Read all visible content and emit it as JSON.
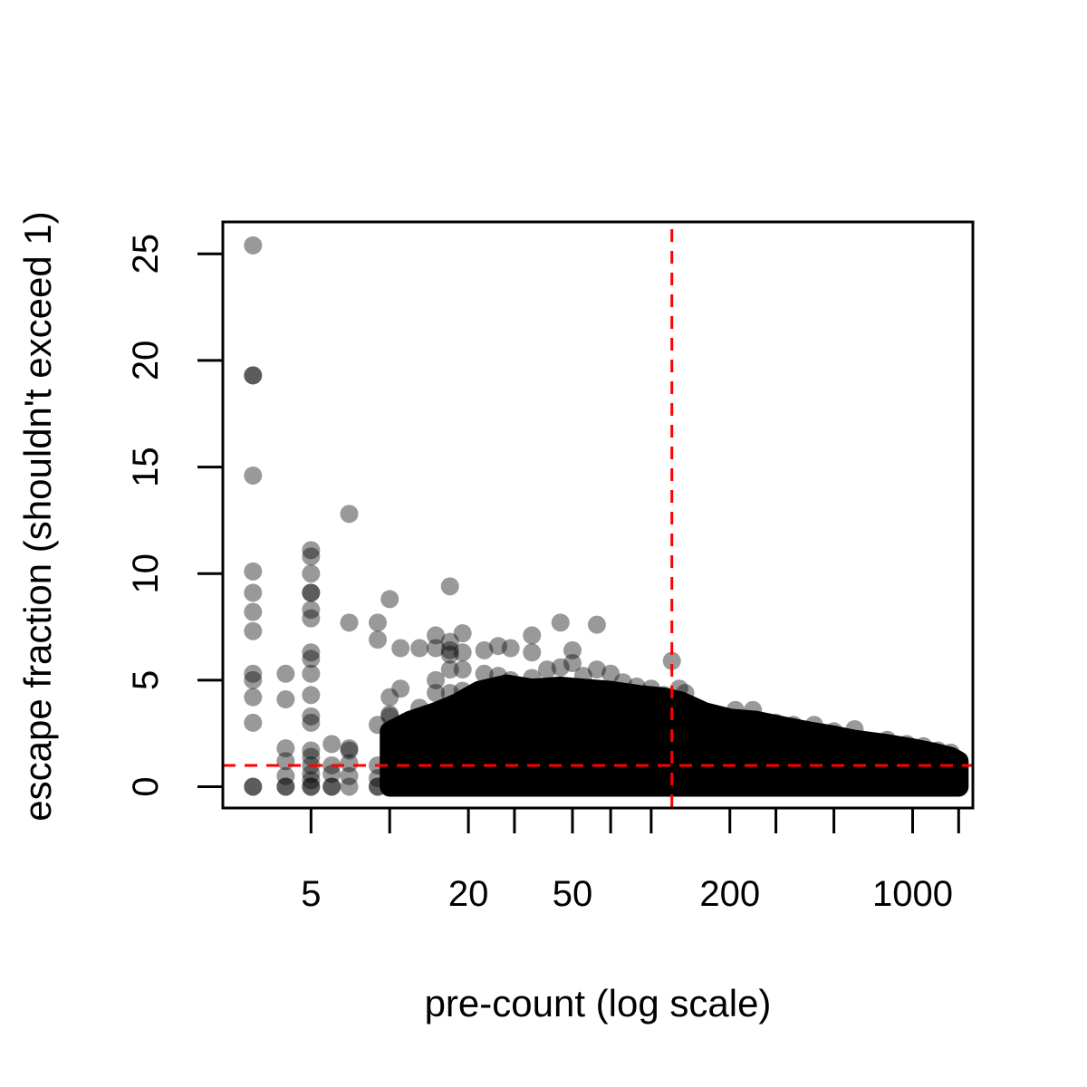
{
  "chart_data": {
    "type": "scatter",
    "title": "",
    "xlabel": "pre-count (log scale)",
    "ylabel": "escape fraction (shouldn't exceed 1)",
    "x_scale": "log",
    "xlim": [
      2.3,
      1700
    ],
    "ylim": [
      -1,
      26.5
    ],
    "x_ticks": [
      5,
      10,
      20,
      30,
      50,
      70,
      100,
      200,
      300,
      500,
      1000,
      1500
    ],
    "x_tick_labels": [
      {
        "value": 5,
        "label": "5"
      },
      {
        "value": 20,
        "label": "20"
      },
      {
        "value": 50,
        "label": "50"
      },
      {
        "value": 200,
        "label": "200"
      },
      {
        "value": 1000,
        "label": "1000"
      }
    ],
    "y_ticks": [
      {
        "value": 0,
        "label": "0"
      },
      {
        "value": 5,
        "label": "5"
      },
      {
        "value": 10,
        "label": "10"
      },
      {
        "value": 15,
        "label": "15"
      },
      {
        "value": 20,
        "label": "20"
      },
      {
        "value": 25,
        "label": "25"
      }
    ],
    "reference_lines": [
      {
        "orientation": "horizontal",
        "value": 1,
        "color": "#ff0000",
        "style": "dashed"
      },
      {
        "orientation": "vertical",
        "value": 120,
        "color": "#ff0000",
        "style": "dashed"
      }
    ],
    "point_color": "#000000",
    "point_opacity": 0.4,
    "grid": false,
    "legend": "none",
    "points": [
      [
        3,
        25.4
      ],
      [
        3,
        19.3
      ],
      [
        3,
        19.3
      ],
      [
        3,
        14.6
      ],
      [
        3,
        10.1
      ],
      [
        3,
        9.1
      ],
      [
        3,
        8.2
      ],
      [
        3,
        7.3
      ],
      [
        3,
        5.3
      ],
      [
        3,
        5.0
      ],
      [
        3,
        4.2
      ],
      [
        3,
        3.0
      ],
      [
        3,
        0
      ],
      [
        3,
        0
      ],
      [
        4,
        5.3
      ],
      [
        4,
        4.1
      ],
      [
        4,
        1.8
      ],
      [
        4,
        1.2
      ],
      [
        4,
        0.5
      ],
      [
        4,
        0
      ],
      [
        4,
        0
      ],
      [
        5,
        11.1
      ],
      [
        5,
        10.8
      ],
      [
        5,
        10.0
      ],
      [
        5,
        9.1
      ],
      [
        5,
        9.1
      ],
      [
        5,
        8.3
      ],
      [
        5,
        7.9
      ],
      [
        5,
        6.3
      ],
      [
        5,
        6.0
      ],
      [
        5,
        5.3
      ],
      [
        5,
        4.3
      ],
      [
        5,
        3.3
      ],
      [
        5,
        3.0
      ],
      [
        5,
        1.7
      ],
      [
        5,
        1.4
      ],
      [
        5,
        1.0
      ],
      [
        5,
        0.6
      ],
      [
        5,
        0.3
      ],
      [
        5,
        0
      ],
      [
        5,
        0
      ],
      [
        6,
        2.0
      ],
      [
        6,
        1.0
      ],
      [
        6,
        0.6
      ],
      [
        6,
        0
      ],
      [
        6,
        0
      ],
      [
        7,
        12.8
      ],
      [
        7,
        7.7
      ],
      [
        7,
        1.8
      ],
      [
        7,
        1.7
      ],
      [
        7,
        1.1
      ],
      [
        7,
        0.5
      ],
      [
        7,
        0
      ],
      [
        9,
        7.7
      ],
      [
        9,
        6.9
      ],
      [
        9,
        2.9
      ],
      [
        9,
        1.0
      ],
      [
        9,
        0.4
      ],
      [
        9,
        0
      ],
      [
        9,
        0
      ],
      [
        10,
        8.8
      ],
      [
        10,
        4.2
      ],
      [
        10,
        3.4
      ],
      [
        10,
        3.3
      ],
      [
        10,
        2.4
      ],
      [
        10,
        1.4
      ],
      [
        10,
        0.5
      ],
      [
        10,
        0
      ],
      [
        11,
        6.5
      ],
      [
        11,
        4.6
      ],
      [
        11,
        2.0
      ],
      [
        11,
        1.0
      ],
      [
        11,
        0
      ],
      [
        11,
        0
      ],
      [
        13,
        6.5
      ],
      [
        13,
        3.7
      ],
      [
        13,
        2.8
      ],
      [
        13,
        1.6
      ],
      [
        13,
        0
      ],
      [
        15,
        7.1
      ],
      [
        15,
        6.5
      ],
      [
        15,
        5.0
      ],
      [
        15,
        4.4
      ],
      [
        15,
        3.3
      ],
      [
        15,
        1.4
      ],
      [
        15,
        0
      ],
      [
        17,
        9.4
      ],
      [
        17,
        6.8
      ],
      [
        17,
        6.4
      ],
      [
        17,
        6.2
      ],
      [
        17,
        5.5
      ],
      [
        17,
        4.4
      ],
      [
        17,
        0
      ],
      [
        19,
        7.2
      ],
      [
        19,
        6.3
      ],
      [
        19,
        5.5
      ],
      [
        19,
        4.5
      ],
      [
        19,
        3.0
      ],
      [
        19,
        0
      ],
      [
        23,
        6.4
      ],
      [
        23,
        5.3
      ],
      [
        23,
        4.3
      ],
      [
        26,
        6.6
      ],
      [
        26,
        5.2
      ],
      [
        29,
        6.5
      ],
      [
        29,
        5.0
      ],
      [
        35,
        7.1
      ],
      [
        35,
        6.3
      ],
      [
        35,
        5.1
      ],
      [
        40,
        5.5
      ],
      [
        45,
        7.7
      ],
      [
        45,
        5.6
      ],
      [
        50,
        6.4
      ],
      [
        50,
        5.8
      ],
      [
        55,
        5.2
      ],
      [
        62,
        7.6
      ],
      [
        62,
        5.5
      ],
      [
        70,
        5.3
      ],
      [
        78,
        4.9
      ],
      [
        88,
        4.7
      ],
      [
        100,
        4.6
      ],
      [
        112,
        4.3
      ],
      [
        120,
        5.9
      ],
      [
        128,
        4.6
      ],
      [
        135,
        4.4
      ],
      [
        210,
        3.6
      ],
      [
        245,
        3.6
      ],
      [
        300,
        3.0
      ],
      [
        350,
        2.9
      ],
      [
        420,
        2.9
      ],
      [
        500,
        2.6
      ],
      [
        600,
        2.7
      ],
      [
        800,
        2.2
      ],
      [
        950,
        2.0
      ],
      [
        1100,
        1.9
      ],
      [
        1250,
        1.7
      ],
      [
        1350,
        1.5
      ],
      [
        1400,
        1.6
      ]
    ],
    "dense_bands": [
      {
        "x_start": 10,
        "x_end": 15,
        "upper": [
          [
            10,
            2.6
          ],
          [
            12,
            3.1
          ],
          [
            15,
            3.5
          ]
        ]
      },
      {
        "x_start": 15,
        "x_end": 1500,
        "upper": [
          [
            15,
            3.5
          ],
          [
            18,
            3.9
          ],
          [
            22,
            4.5
          ],
          [
            28,
            4.8
          ],
          [
            35,
            4.6
          ],
          [
            45,
            4.7
          ],
          [
            55,
            4.6
          ],
          [
            70,
            4.5
          ],
          [
            90,
            4.3
          ],
          [
            110,
            4.2
          ],
          [
            130,
            4.0
          ],
          [
            160,
            3.5
          ],
          [
            200,
            3.2
          ],
          [
            250,
            3.1
          ],
          [
            300,
            2.9
          ],
          [
            400,
            2.6
          ],
          [
            500,
            2.4
          ],
          [
            600,
            2.2
          ],
          [
            800,
            2.0
          ],
          [
            1000,
            1.8
          ],
          [
            1200,
            1.6
          ],
          [
            1400,
            1.4
          ],
          [
            1500,
            1.2
          ]
        ]
      }
    ]
  }
}
